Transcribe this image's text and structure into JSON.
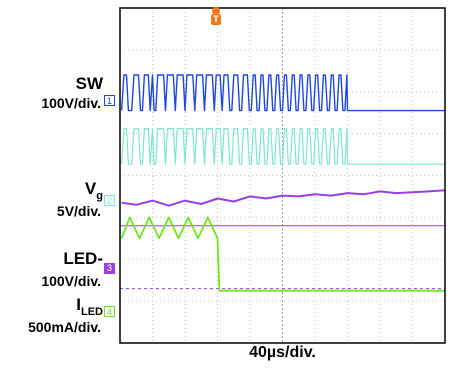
{
  "chart_data": {
    "type": "line",
    "xlabel": "40µs/div.",
    "x_divisions": 10,
    "y_divisions": 8,
    "trigger_marker": "T",
    "colors": {
      "background": "#ffffff",
      "grid": "#c8c8c8",
      "frame": "#000000",
      "ch1": "#1f46e0",
      "ch1_ghost": "#8fa3f0",
      "ch2": "#7de6cf",
      "vg": "#9a3fe0",
      "ch4": "#6ee61f",
      "trigger": "#f07820"
    },
    "channels": [
      {
        "tag": "1",
        "label": "SW",
        "scale": "100V/div.",
        "color": "#1f46e0",
        "tag_style": "outline"
      },
      {
        "tag": "2",
        "label": "V",
        "label_sub": "g",
        "scale": "5V/div.",
        "color": "#7de6cf",
        "tag_style": "outline"
      },
      {
        "tag": "3",
        "label": "LED-",
        "scale": "100V/div.",
        "color": "#9a3fe0",
        "tag_style": "filled"
      },
      {
        "tag": "4",
        "label": "I",
        "label_sub": "LED",
        "scale": "500mA/div.",
        "color": "#6ee61f",
        "tag_style": "outline"
      }
    ],
    "series": [
      {
        "name": "SW",
        "x": [
          0.05,
          0.12,
          0.2,
          0.26,
          0.36,
          0.43,
          0.5,
          0.57,
          0.63,
          0.69,
          0.75,
          0.81,
          0.87,
          0.93,
          1.0,
          1.05,
          1.1,
          1.16,
          1.22,
          1.28,
          1.34,
          1.4,
          1.46,
          1.52,
          1.58,
          1.64,
          1.7,
          1.76,
          1.82,
          1.88,
          1.94,
          2.0,
          2.06,
          2.12,
          2.18,
          2.24,
          2.3,
          2.36,
          2.42,
          2.48,
          2.54,
          2.6,
          2.66,
          2.72,
          2.78,
          2.84,
          2.9,
          2.96,
          3.02,
          3.08,
          3.14,
          3.2,
          3.26,
          3.32,
          3.38,
          3.44,
          3.5,
          3.56,
          3.62,
          3.68,
          3.74,
          3.8,
          3.86,
          3.92,
          3.98,
          4.04,
          4.1,
          4.16,
          4.22,
          4.28,
          4.34,
          4.4,
          4.46,
          4.52,
          4.58,
          4.64,
          4.7,
          4.76,
          4.82,
          4.88,
          4.94,
          5.0,
          5.06,
          5.12,
          5.18,
          5.24,
          5.3,
          5.36,
          5.42,
          5.48,
          5.54,
          5.6,
          5.66,
          5.72,
          5.78,
          5.84,
          5.9,
          5.96,
          6.02,
          6.08,
          6.14,
          6.2,
          6.26,
          6.32,
          6.38,
          6.44,
          6.5,
          6.56,
          6.62,
          6.68,
          6.74,
          6.8,
          6.86,
          6.92,
          6.98,
          7.0,
          10.0
        ],
        "y": [
          1.55,
          2.4,
          2.4,
          1.55,
          1.55,
          2.4,
          2.4,
          2.4,
          1.55,
          1.55,
          2.4,
          2.4,
          2.4,
          1.55,
          2.4,
          1.55,
          1.55,
          2.4,
          2.4,
          2.4,
          2.4,
          1.55,
          2.4,
          2.4,
          2.4,
          2.4,
          1.55,
          2.4,
          2.4,
          2.4,
          2.4,
          1.55,
          2.4,
          2.4,
          2.4,
          2.4,
          1.55,
          2.4,
          2.4,
          2.4,
          2.4,
          1.55,
          2.4,
          2.4,
          2.4,
          2.4,
          1.55,
          2.4,
          2.4,
          2.4,
          1.55,
          2.4,
          2.4,
          2.4,
          1.55,
          1.55,
          2.4,
          2.4,
          2.4,
          1.55,
          1.55,
          2.4,
          2.4,
          2.4,
          1.55,
          1.55,
          2.4,
          2.4,
          1.55,
          1.55,
          2.4,
          2.4,
          1.55,
          1.55,
          2.4,
          2.4,
          1.55,
          1.55,
          2.4,
          2.4,
          1.55,
          1.55,
          2.4,
          2.4,
          1.55,
          1.55,
          2.4,
          2.4,
          1.55,
          1.55,
          2.4,
          2.4,
          1.55,
          1.55,
          2.4,
          2.4,
          1.55,
          1.55,
          2.4,
          2.4,
          1.55,
          1.55,
          2.4,
          2.4,
          1.55,
          1.55,
          2.4,
          2.4,
          1.55,
          1.55,
          2.4,
          2.4,
          1.55,
          1.55,
          2.4,
          1.55,
          1.55
        ]
      },
      {
        "name": "Vg",
        "x": [
          0.05,
          0.5,
          1.0,
          1.5,
          2.0,
          2.5,
          3.0,
          3.5,
          4.0,
          4.5,
          5.0,
          5.5,
          6.0,
          6.5,
          7.0,
          7.5,
          8.0,
          8.5,
          9.0,
          9.5,
          10.0
        ],
        "y": [
          -0.65,
          -0.7,
          -0.6,
          -0.72,
          -0.6,
          -0.68,
          -0.55,
          -0.62,
          -0.5,
          -0.55,
          -0.48,
          -0.5,
          -0.45,
          -0.48,
          -0.42,
          -0.45,
          -0.38,
          -0.42,
          -0.4,
          -0.38,
          -0.35
        ]
      },
      {
        "name": "ILED",
        "x": [
          0.05,
          0.3,
          0.6,
          0.9,
          1.2,
          1.5,
          1.8,
          2.1,
          2.4,
          2.7,
          3.0,
          3.06,
          3.2,
          4.0,
          5.0,
          6.0,
          7.0,
          8.0,
          9.0,
          10.0
        ],
        "y": [
          -1.5,
          -1.0,
          -1.5,
          -1.0,
          -1.5,
          -1.0,
          -1.5,
          -1.0,
          -1.5,
          -1.0,
          -1.5,
          -2.75,
          -2.75,
          -2.75,
          -2.75,
          -2.75,
          -2.75,
          -2.75,
          -2.75,
          -2.75
        ]
      }
    ]
  }
}
